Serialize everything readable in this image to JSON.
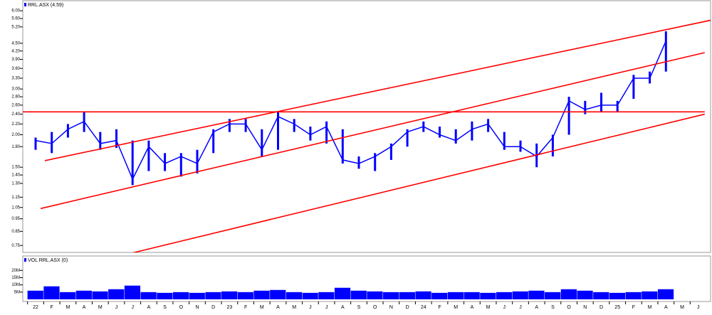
{
  "chart_data": {
    "type": "price",
    "legend": "RRL.ASX (4.59)",
    "categories": [
      "22",
      "F",
      "M",
      "A",
      "M",
      "J",
      "J",
      "A",
      "S",
      "O",
      "N",
      "D",
      "23",
      "F",
      "M",
      "A",
      "M",
      "J",
      "J",
      "A",
      "S",
      "O",
      "N",
      "D",
      "24",
      "F",
      "M",
      "A",
      "M",
      "J",
      "J",
      "A",
      "S",
      "O",
      "N",
      "D",
      "25",
      "F",
      "M",
      "A",
      "M",
      "J"
    ],
    "series": [
      {
        "name": "RRL.ASX (4.59)",
        "color": "#0000ff",
        "values": [
          1.9,
          1.85,
          2.1,
          2.25,
          1.85,
          1.9,
          1.35,
          1.8,
          1.55,
          1.65,
          1.55,
          2.05,
          2.2,
          2.2,
          1.75,
          2.35,
          2.2,
          2.0,
          2.15,
          1.6,
          1.55,
          1.65,
          1.8,
          2.05,
          2.15,
          2.0,
          1.9,
          2.1,
          2.2,
          1.8,
          1.8,
          1.65,
          1.95,
          2.7,
          2.5,
          2.6,
          2.6,
          3.3,
          3.3,
          4.59,
          null,
          null
        ],
        "high": [
          1.95,
          2.05,
          2.2,
          2.45,
          2.05,
          2.1,
          1.9,
          1.9,
          1.7,
          1.7,
          1.75,
          2.1,
          2.3,
          2.3,
          2.1,
          2.45,
          2.3,
          2.15,
          2.25,
          2.1,
          1.65,
          1.7,
          1.85,
          2.1,
          2.25,
          2.15,
          2.1,
          2.25,
          2.3,
          2.05,
          1.9,
          1.85,
          2.0,
          2.8,
          2.7,
          2.9,
          2.7,
          3.4,
          3.5,
          5.0,
          null,
          null
        ],
        "low": [
          1.75,
          1.7,
          1.95,
          2.05,
          1.75,
          1.78,
          1.28,
          1.45,
          1.45,
          1.38,
          1.42,
          1.7,
          2.05,
          2.05,
          1.65,
          1.75,
          2.05,
          1.9,
          1.85,
          1.55,
          1.48,
          1.45,
          1.6,
          1.8,
          2.05,
          1.95,
          1.85,
          1.9,
          2.05,
          1.75,
          1.72,
          1.5,
          1.65,
          2.0,
          2.4,
          2.45,
          2.45,
          2.75,
          3.15,
          3.5,
          null,
          null
        ]
      }
    ],
    "log": true,
    "ylim": [
      0.705,
      6.6
    ],
    "yticks": [
      {
        "value": 6,
        "label": "6.00"
      },
      {
        "value": 5.6,
        "label": "5.60"
      },
      {
        "value": 5.2,
        "label": "5.20"
      },
      {
        "value": 4.5,
        "label": "4.50"
      },
      {
        "value": 4.2,
        "label": "4.20"
      },
      {
        "value": 3.9,
        "label": "3.90"
      },
      {
        "value": 3.6,
        "label": "3.60"
      },
      {
        "value": 3.3,
        "label": "3.30"
      },
      {
        "value": 3,
        "label": "3.00"
      },
      {
        "value": 2.8,
        "label": "2.80"
      },
      {
        "value": 2.6,
        "label": "2.60"
      },
      {
        "value": 2.4,
        "label": "2.40"
      },
      {
        "value": 2.2,
        "label": "2.20"
      },
      {
        "value": 2,
        "label": "2.00"
      },
      {
        "value": 1.8,
        "label": "1.80"
      },
      {
        "value": 1.5,
        "label": "1.50"
      },
      {
        "value": 1.4,
        "label": "1.40"
      },
      {
        "value": 1.3,
        "label": "1.30"
      },
      {
        "value": 1.15,
        "label": "1.15"
      },
      {
        "value": 1.05,
        "label": "1.05"
      },
      {
        "value": 0.95,
        "label": "0.95"
      },
      {
        "value": 0.85,
        "label": "0.85"
      },
      {
        "value": 0.75,
        "label": "0.75"
      }
    ],
    "trendlines": [
      {
        "color": "#ff0000",
        "from": [
          -0.79,
          2.45
        ],
        "to": [
          41.4,
          2.45
        ]
      },
      {
        "color": "#ff0000",
        "from": [
          0.57,
          1.59
        ],
        "to": [
          41.85,
          5.53
        ]
      },
      {
        "color": "#ff0000",
        "from": [
          0.31,
          1.04
        ],
        "to": [
          41.4,
          4.14
        ]
      },
      {
        "color": "#ff0000",
        "from": [
          5.5,
          0.69
        ],
        "to": [
          41.4,
          2.4
        ]
      }
    ],
    "volume": {
      "legend": "VOL RRL.ASX (0)",
      "color": "#0000ff",
      "values": [
        6000000,
        9000000,
        5000000,
        6000000,
        5500000,
        7000000,
        9500000,
        5000000,
        4500000,
        5000000,
        4500000,
        5000000,
        5500000,
        5000000,
        6000000,
        6500000,
        5000000,
        4500000,
        5000000,
        8000000,
        6000000,
        5500000,
        5000000,
        5000000,
        5500000,
        4500000,
        5000000,
        5000000,
        4500000,
        5000000,
        5500000,
        6000000,
        5000000,
        7000000,
        6000000,
        5000000,
        4500000,
        5000000,
        5500000,
        7000000,
        null,
        null
      ],
      "ylim": [
        0,
        29000000
      ],
      "yticks": [
        {
          "value": 20000000,
          "label": "20M"
        },
        {
          "value": 15000000,
          "label": "15M"
        },
        {
          "value": 10000000,
          "label": "10M"
        },
        {
          "value": 5000000,
          "label": "5M"
        }
      ]
    }
  }
}
